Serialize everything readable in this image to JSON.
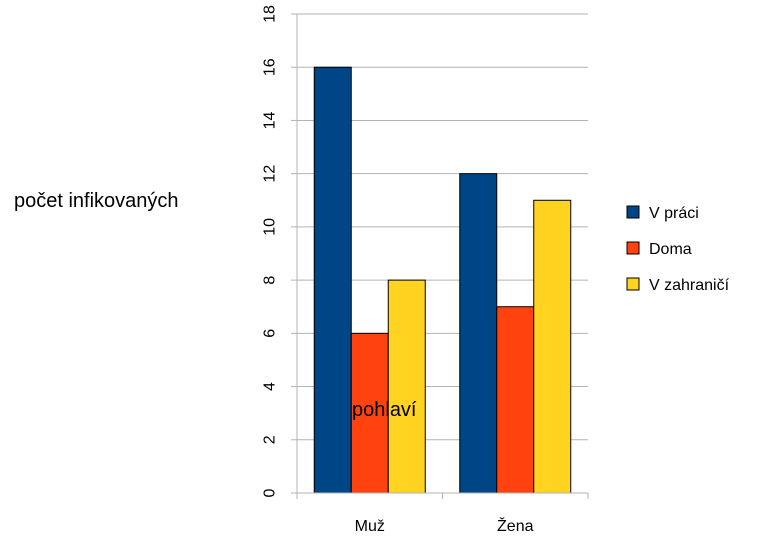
{
  "chart_data": {
    "type": "bar",
    "title": "",
    "xlabel": "pohlaví",
    "ylabel": "počet infikovaných",
    "categories": [
      "Muž",
      "Žena"
    ],
    "series": [
      {
        "name": "V práci",
        "values": [
          16,
          12
        ],
        "color": "#004586"
      },
      {
        "name": "Doma",
        "values": [
          6,
          7
        ],
        "color": "#ff420e"
      },
      {
        "name": "V zahraničí",
        "values": [
          8,
          11
        ],
        "color": "#ffd320"
      }
    ],
    "ylim": [
      0,
      18
    ],
    "yticks": [
      "0",
      "2",
      "4",
      "6",
      "8",
      "10",
      "12",
      "14",
      "16",
      "18"
    ],
    "grid": true,
    "legend_position": "right"
  }
}
